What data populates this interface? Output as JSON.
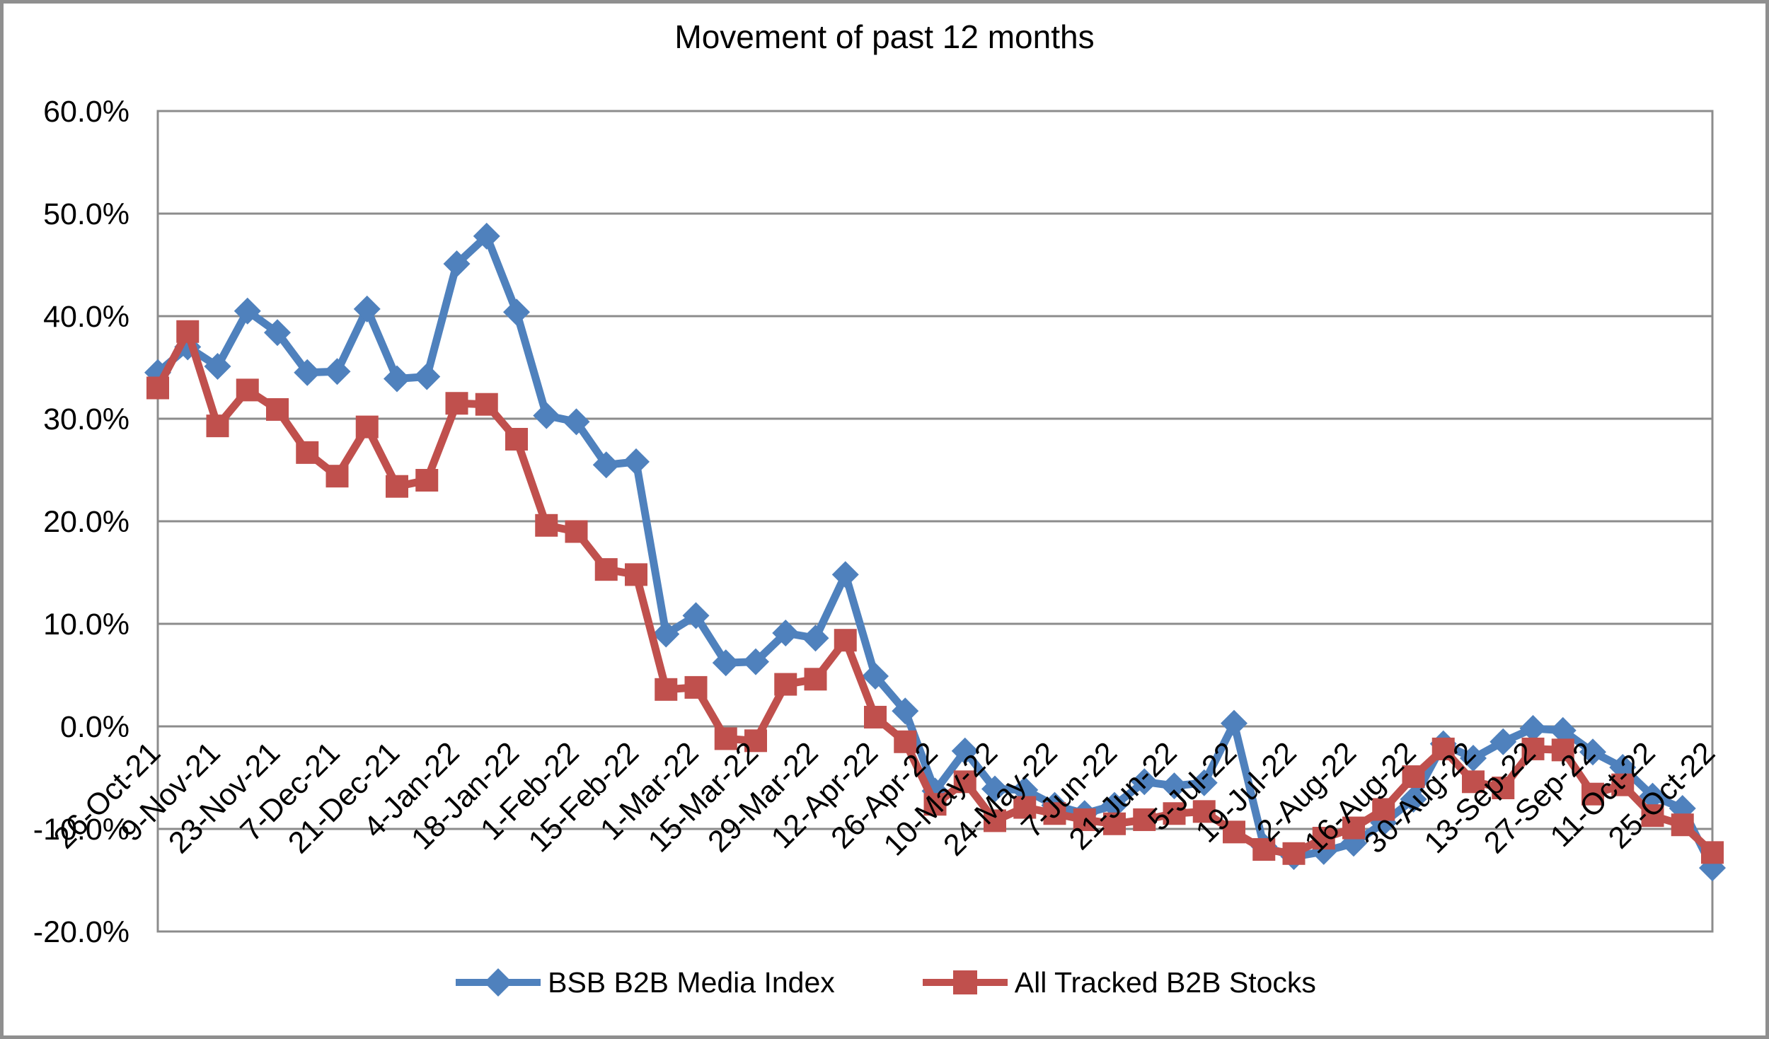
{
  "chart_data": {
    "type": "line",
    "title": "Movement of past 12 months",
    "x_labels": [
      "26-Oct-21",
      "9-Nov-21",
      "23-Nov-21",
      "7-Dec-21",
      "21-Dec-21",
      "4-Jan-22",
      "18-Jan-22",
      "1-Feb-22",
      "15-Feb-22",
      "1-Mar-22",
      "15-Mar-22",
      "29-Mar-22",
      "12-Apr-22",
      "26-Apr-22",
      "10-May-22",
      "24-May-22",
      "7-Jun-22",
      "21-Jun-22",
      "5-Jul-22",
      "19-Jul-22",
      "2-Aug-22",
      "16-Aug-22",
      "30-Aug-22",
      "13-Sep-22",
      "27-Sep-22",
      "11-Oct-22",
      "25-Oct-22"
    ],
    "points_per_label": 2,
    "x_interval": "weekly",
    "ylim": [
      -20,
      60
    ],
    "y_tick_step": 10,
    "y_tick_labels": [
      "60.0%",
      "50.0%",
      "40.0%",
      "30.0%",
      "20.0%",
      "10.0%",
      "0.0%",
      "-10.0%",
      "-20.0%"
    ],
    "grid": "horizontal",
    "gridline_color": "#8c8c8c",
    "legend_position": "bottom",
    "series": [
      {
        "name": "BSB B2B Media Index",
        "color": "#4F81BD",
        "marker": "diamond",
        "values": [
          34.5,
          37.0,
          35.1,
          40.5,
          38.4,
          34.5,
          34.6,
          40.7,
          33.9,
          34.1,
          45.1,
          47.8,
          40.4,
          30.3,
          29.7,
          25.5,
          25.8,
          9.0,
          10.8,
          6.2,
          6.3,
          9.1,
          8.6,
          14.8,
          4.9,
          1.5,
          -6.3,
          -2.4,
          -6.1,
          -6.2,
          -7.7,
          -8.5,
          -7.7,
          -5.4,
          -5.8,
          -5.5,
          0.3,
          -11.7,
          -12.7,
          -12.2,
          -11.4,
          -9.4,
          -7.1,
          -1.7,
          -3.1,
          -1.5,
          -0.2,
          -0.4,
          -2.5,
          -4.0,
          -6.8,
          -8.0,
          -13.8
        ]
      },
      {
        "name": "All Tracked B2B Stocks",
        "color": "#C0504D",
        "marker": "square",
        "values": [
          33.0,
          38.5,
          29.3,
          32.8,
          30.9,
          26.7,
          24.4,
          29.2,
          23.4,
          24.0,
          31.5,
          31.4,
          28.0,
          19.6,
          19.0,
          15.3,
          14.8,
          3.6,
          3.8,
          -1.2,
          -1.4,
          4.1,
          4.6,
          8.4,
          0.9,
          -1.5,
          -7.6,
          -5.4,
          -9.2,
          -7.9,
          -8.5,
          -9.1,
          -9.5,
          -9.1,
          -8.5,
          -8.3,
          -10.3,
          -12.0,
          -12.4,
          -10.9,
          -9.9,
          -8.1,
          -4.9,
          -2.2,
          -5.4,
          -6.0,
          -2.2,
          -2.3,
          -6.6,
          -5.7,
          -8.7,
          -9.6,
          -12.3
        ]
      }
    ]
  },
  "frame": {
    "border_color": "#8f8f8f",
    "background_color": "#ffffff",
    "text_color": "#000000"
  }
}
